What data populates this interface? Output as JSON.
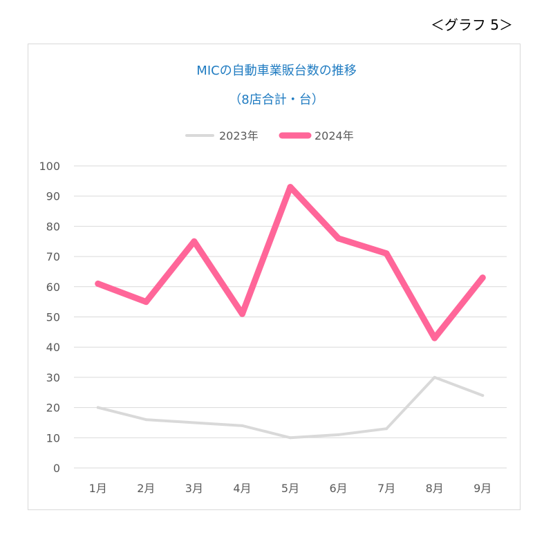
{
  "graph_label": "＜グラフ 5＞",
  "chart_data": {
    "type": "line",
    "title": "MICの自動車業販台数の推移",
    "subtitle": "（8店合計・台）",
    "categories": [
      "1月",
      "2月",
      "3月",
      "4月",
      "5月",
      "6月",
      "7月",
      "8月",
      "9月"
    ],
    "series": [
      {
        "name": "2023年",
        "color": "#d9d9d9",
        "values": [
          20,
          16,
          15,
          14,
          10,
          11,
          13,
          30,
          24
        ]
      },
      {
        "name": "2024年",
        "color": "#ff6699",
        "values": [
          61,
          55,
          75,
          51,
          93,
          76,
          71,
          43,
          63
        ]
      }
    ],
    "ylim": [
      0,
      100
    ],
    "yticks": [
      "0",
      "10",
      "20",
      "30",
      "40",
      "50",
      "60",
      "70",
      "80",
      "90",
      "100"
    ],
    "grid": true,
    "legend_position": "top"
  }
}
